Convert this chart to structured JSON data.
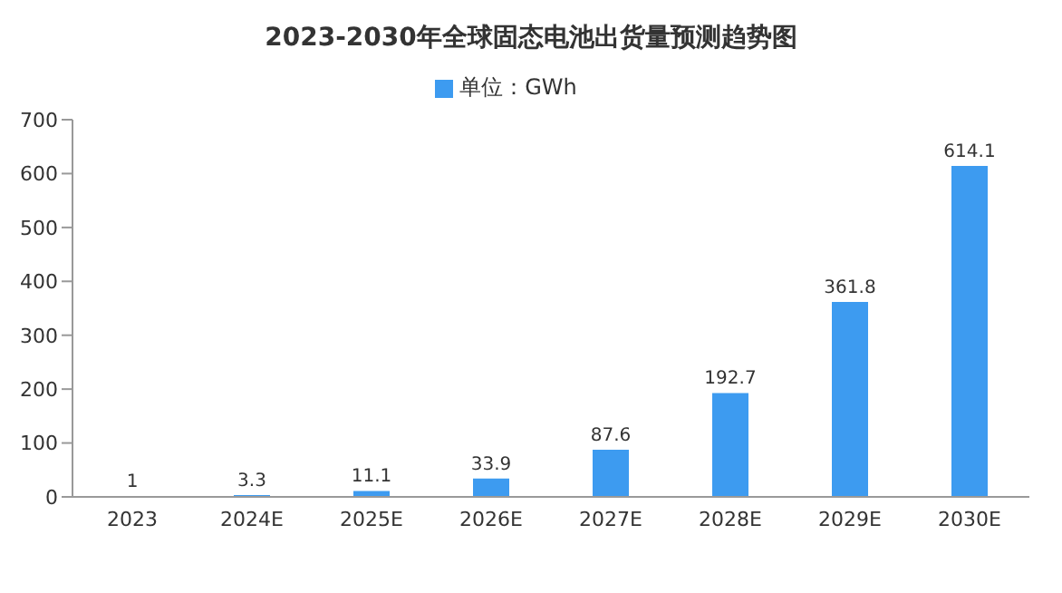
{
  "chart_data": {
    "type": "bar",
    "title": "2023-2030年全球固态电池出货量预测趋势图",
    "categories": [
      "2023",
      "2024E",
      "2025E",
      "2026E",
      "2027E",
      "2028E",
      "2029E",
      "2030E"
    ],
    "series": [
      {
        "name": "单位：GWh",
        "color": "#3d9bf0",
        "values": [
          1,
          3.3,
          11.1,
          33.9,
          87.6,
          192.7,
          361.8,
          614.1
        ]
      }
    ],
    "ylim": [
      0,
      700
    ],
    "yticks": [
      0,
      100,
      200,
      300,
      400,
      500,
      600,
      700
    ],
    "data_labels": true,
    "legend": "top"
  }
}
